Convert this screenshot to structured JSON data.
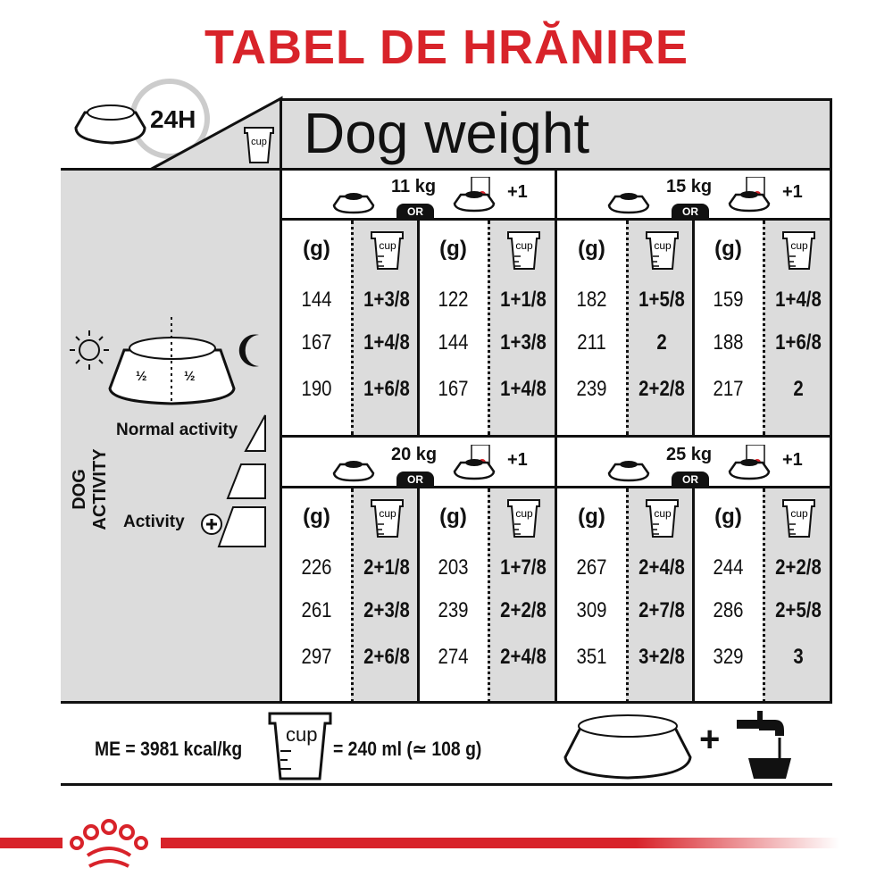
{
  "title": "TABEL DE HRĂNIRE",
  "header": {
    "time_label": "24H",
    "cup_label": "cup",
    "dog_weight_label": "Dog weight"
  },
  "left": {
    "half_left": "½",
    "half_right": "½",
    "dog_activity_label": "DOG ACTIVITY",
    "normal_activity": "Normal activity",
    "activity": "Activity"
  },
  "or_label": "OR",
  "plus_one": "+1",
  "grams_header": "(g)",
  "cup_label": "cup",
  "panels": [
    {
      "weight": "11 kg",
      "dry_only": {
        "g": [
          "144",
          "167",
          "190"
        ],
        "cup": [
          "1+3/8",
          "1+4/8",
          "1+6/8"
        ]
      },
      "with_wet": {
        "g": [
          "122",
          "144",
          "167"
        ],
        "cup": [
          "1+1/8",
          "1+3/8",
          "1+4/8"
        ]
      }
    },
    {
      "weight": "15 kg",
      "dry_only": {
        "g": [
          "182",
          "211",
          "239"
        ],
        "cup": [
          "1+5/8",
          "2",
          "2+2/8"
        ]
      },
      "with_wet": {
        "g": [
          "159",
          "188",
          "217"
        ],
        "cup": [
          "1+4/8",
          "1+6/8",
          "2"
        ]
      }
    },
    {
      "weight": "20 kg",
      "dry_only": {
        "g": [
          "226",
          "261",
          "297"
        ],
        "cup": [
          "2+1/8",
          "2+3/8",
          "2+6/8"
        ]
      },
      "with_wet": {
        "g": [
          "203",
          "239",
          "274"
        ],
        "cup": [
          "1+7/8",
          "2+2/8",
          "2+4/8"
        ]
      }
    },
    {
      "weight": "25 kg",
      "dry_only": {
        "g": [
          "267",
          "309",
          "351"
        ],
        "cup": [
          "2+4/8",
          "2+7/8",
          "3+2/8"
        ]
      },
      "with_wet": {
        "g": [
          "244",
          "286",
          "329"
        ],
        "cup": [
          "2+2/8",
          "2+5/8",
          "3"
        ]
      }
    }
  ],
  "footer": {
    "energy": "ME = 3981 kcal/kg",
    "cup_label": "cup",
    "cup_equiv": "= 240 ml (≃ 108 g)",
    "plus": "+"
  },
  "colors": {
    "brand_red": "#d8232a",
    "gray": "#dcdcdc"
  }
}
